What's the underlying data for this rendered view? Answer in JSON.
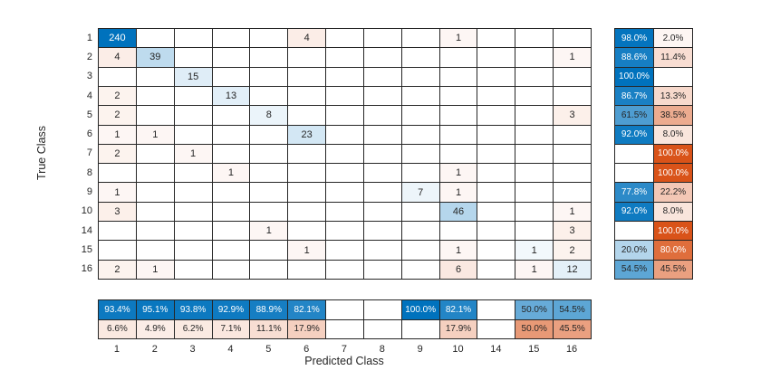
{
  "chart_data": {
    "type": "heatmap",
    "variant": "confusion-matrix",
    "title": "",
    "xlabel": "Predicted Class",
    "ylabel": "True Class",
    "grid": true,
    "legend_position": "none",
    "classes": [
      "1",
      "2",
      "3",
      "4",
      "5",
      "6",
      "7",
      "8",
      "9",
      "10",
      "14",
      "15",
      "16"
    ],
    "max_cell_value": 240,
    "matrix": [
      [
        240,
        0,
        0,
        0,
        0,
        4,
        0,
        0,
        0,
        1,
        0,
        0,
        0
      ],
      [
        4,
        39,
        0,
        0,
        0,
        0,
        0,
        0,
        0,
        0,
        0,
        0,
        1
      ],
      [
        0,
        0,
        15,
        0,
        0,
        0,
        0,
        0,
        0,
        0,
        0,
        0,
        0
      ],
      [
        2,
        0,
        0,
        13,
        0,
        0,
        0,
        0,
        0,
        0,
        0,
        0,
        0
      ],
      [
        2,
        0,
        0,
        0,
        8,
        0,
        0,
        0,
        0,
        0,
        0,
        0,
        3
      ],
      [
        1,
        1,
        0,
        0,
        0,
        23,
        0,
        0,
        0,
        0,
        0,
        0,
        0
      ],
      [
        2,
        0,
        1,
        0,
        0,
        0,
        0,
        0,
        0,
        0,
        0,
        0,
        0
      ],
      [
        0,
        0,
        0,
        1,
        0,
        0,
        0,
        0,
        0,
        1,
        0,
        0,
        0
      ],
      [
        1,
        0,
        0,
        0,
        0,
        0,
        0,
        0,
        7,
        1,
        0,
        0,
        0
      ],
      [
        3,
        0,
        0,
        0,
        0,
        0,
        0,
        0,
        0,
        46,
        0,
        0,
        1
      ],
      [
        0,
        0,
        0,
        0,
        1,
        0,
        0,
        0,
        0,
        0,
        0,
        0,
        3
      ],
      [
        0,
        0,
        0,
        0,
        0,
        1,
        0,
        0,
        0,
        1,
        0,
        1,
        2
      ],
      [
        2,
        1,
        0,
        0,
        0,
        0,
        0,
        0,
        0,
        6,
        0,
        1,
        12
      ]
    ],
    "row_summary": {
      "correct_pct": [
        98.0,
        88.6,
        100.0,
        86.7,
        61.5,
        92.0,
        null,
        null,
        77.8,
        92.0,
        null,
        20.0,
        54.5
      ],
      "incorrect_pct": [
        2.0,
        11.4,
        null,
        13.3,
        38.5,
        8.0,
        100.0,
        100.0,
        22.2,
        8.0,
        100.0,
        80.0,
        45.5
      ]
    },
    "column_summary": {
      "correct_pct": [
        93.4,
        95.1,
        93.8,
        92.9,
        88.9,
        82.1,
        null,
        null,
        100.0,
        82.1,
        null,
        50.0,
        54.5
      ],
      "incorrect_pct": [
        6.6,
        4.9,
        6.2,
        7.1,
        11.1,
        17.9,
        null,
        null,
        null,
        17.9,
        null,
        50.0,
        45.5
      ]
    },
    "colors": {
      "diagonal_base": "#0072BD",
      "off_diagonal_base": "#D95319",
      "grid_line": "#262626",
      "text_dark": "#262626",
      "text_light": "#ffffff",
      "background": "#ffffff"
    }
  }
}
